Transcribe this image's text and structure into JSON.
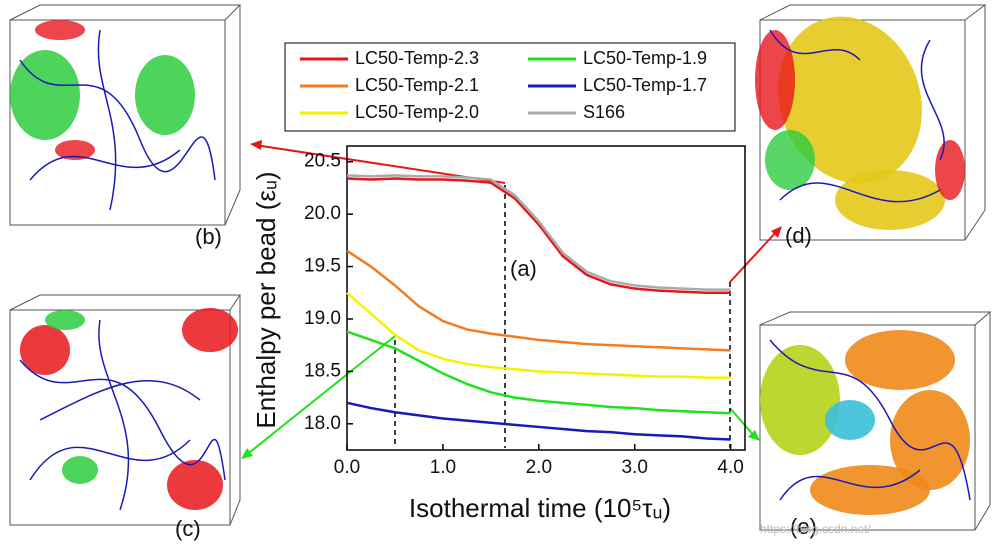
{
  "chart_data": {
    "type": "line",
    "y_label": "Enthalpy per bead (εᵤ)",
    "x_label": "Isothermal time (10⁵τᵤ)",
    "annotations": [
      "(a)",
      "(b)",
      "(c)",
      "(d)",
      "(e)"
    ],
    "watermark": "https://blog.csdn.net/",
    "x": [
      0,
      0.25,
      0.5,
      0.75,
      1.0,
      1.25,
      1.5,
      1.75,
      2.0,
      2.25,
      2.5,
      2.75,
      3.0,
      3.25,
      3.5,
      3.75,
      4.0
    ],
    "series": [
      {
        "name": "LC50-Temp-2.3",
        "color": "#e8161b",
        "values": [
          20.34,
          20.33,
          20.34,
          20.33,
          20.33,
          20.32,
          20.3,
          20.15,
          19.9,
          19.6,
          19.42,
          19.33,
          19.29,
          19.27,
          19.26,
          19.25,
          19.25
        ]
      },
      {
        "name": "LC50-Temp-2.1",
        "color": "#f47b20",
        "values": [
          19.65,
          19.5,
          19.32,
          19.12,
          18.98,
          18.9,
          18.86,
          18.83,
          18.8,
          18.78,
          18.76,
          18.75,
          18.74,
          18.73,
          18.72,
          18.71,
          18.7
        ]
      },
      {
        "name": "LC50-Temp-2.0",
        "color": "#f5f200",
        "values": [
          19.25,
          19.05,
          18.85,
          18.7,
          18.62,
          18.57,
          18.54,
          18.52,
          18.5,
          18.49,
          18.48,
          18.47,
          18.46,
          18.45,
          18.45,
          18.44,
          18.44
        ]
      },
      {
        "name": "LC50-Temp-1.9",
        "color": "#22e01a",
        "values": [
          18.88,
          18.8,
          18.72,
          18.6,
          18.48,
          18.38,
          18.3,
          18.25,
          18.22,
          18.2,
          18.18,
          18.16,
          18.15,
          18.13,
          18.12,
          18.11,
          18.1
        ]
      },
      {
        "name": "LC50-Temp-1.7",
        "color": "#1a1ab8",
        "values": [
          18.2,
          18.15,
          18.11,
          18.08,
          18.05,
          18.03,
          18.01,
          17.99,
          17.97,
          17.95,
          17.93,
          17.92,
          17.9,
          17.89,
          17.88,
          17.86,
          17.85
        ]
      },
      {
        "name": "S166",
        "color": "#aaaaaa",
        "values": [
          20.37,
          20.36,
          20.37,
          20.36,
          20.36,
          20.35,
          20.33,
          20.18,
          19.93,
          19.63,
          19.45,
          19.36,
          19.32,
          19.3,
          19.29,
          19.28,
          19.28
        ]
      }
    ],
    "xlim": [
      0,
      4.15
    ],
    "ylim": [
      17.75,
      20.65
    ],
    "xticks": [
      {
        "value": 0,
        "label": "0.0"
      },
      {
        "value": 1,
        "label": "1.0"
      },
      {
        "value": 2,
        "label": "2.0"
      },
      {
        "value": 3,
        "label": "3.0"
      },
      {
        "value": 4,
        "label": "4.0"
      }
    ],
    "yticks": [
      {
        "value": 18,
        "label": "18.0"
      },
      18.5,
      {
        "value": 19,
        "label": "19.0"
      },
      19.5,
      {
        "value": 20,
        "label": "20.0"
      },
      20.5
    ],
    "legend": "top"
  }
}
